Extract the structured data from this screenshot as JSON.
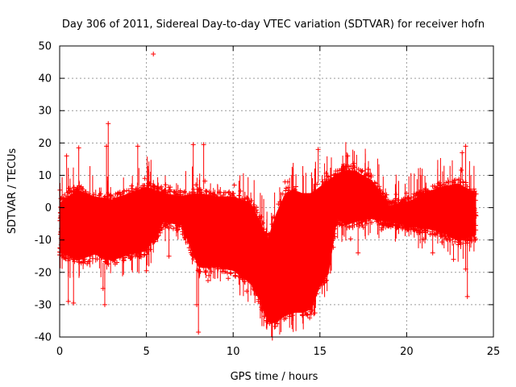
{
  "chart_data": {
    "type": "scatter",
    "title": "Day 306 of 2011, Sidereal Day-to-day VTEC variation (SDTVAR) for receiver hofn",
    "xlabel": "GPS time / hours",
    "ylabel": "SDTVAR / TECUs",
    "xlim": [
      0,
      25
    ],
    "ylim": [
      -40,
      50
    ],
    "xticks": [
      0,
      5,
      10,
      15,
      20,
      25
    ],
    "yticks": [
      -40,
      -30,
      -20,
      -10,
      0,
      10,
      20,
      30,
      40,
      50
    ],
    "grid": true,
    "marker": "+",
    "color": "#ff0000",
    "envelope": {
      "x": [
        0,
        1,
        2,
        3,
        4,
        5,
        6,
        7,
        8,
        9,
        10,
        11,
        11.5,
        12,
        12.5,
        13,
        13.5,
        14,
        14.5,
        15,
        15.5,
        16,
        16.5,
        17,
        18,
        19,
        20,
        21,
        22,
        23,
        24
      ],
      "upper": [
        3,
        7,
        5,
        4,
        6,
        8,
        6,
        5,
        6,
        5,
        5,
        3,
        -2,
        -8,
        0,
        6,
        7,
        6,
        6,
        8,
        10,
        12,
        13,
        13,
        10,
        2,
        3,
        6,
        8,
        9,
        6
      ],
      "lower": [
        -15,
        -18,
        -16,
        -18,
        -16,
        -15,
        -6,
        -7,
        -20,
        -20,
        -21,
        -25,
        -30,
        -37,
        -37,
        -35,
        -34,
        -34,
        -33,
        -26,
        -22,
        -5,
        -7,
        -6,
        -5,
        -6,
        -7,
        -8,
        -9,
        -12,
        -10
      ]
    },
    "outliers": [
      {
        "x": 5.4,
        "y": 47.5
      },
      {
        "x": 2.8,
        "y": 26
      },
      {
        "x": 2.7,
        "y": 19
      },
      {
        "x": 4.5,
        "y": 19
      },
      {
        "x": 7.7,
        "y": 19.5
      },
      {
        "x": 8.3,
        "y": 19.5
      },
      {
        "x": 1.1,
        "y": 18.5
      },
      {
        "x": 14.9,
        "y": 18
      },
      {
        "x": 23.4,
        "y": 19
      },
      {
        "x": 23.2,
        "y": 17
      },
      {
        "x": 0.4,
        "y": 16
      },
      {
        "x": 16.6,
        "y": 16
      },
      {
        "x": 8.0,
        "y": -38.5
      },
      {
        "x": 7.9,
        "y": -30
      },
      {
        "x": 2.6,
        "y": -30
      },
      {
        "x": 0.5,
        "y": -29
      },
      {
        "x": 0.8,
        "y": -29.5
      },
      {
        "x": 23.5,
        "y": -27.5
      },
      {
        "x": 23.4,
        "y": -19
      },
      {
        "x": 2.5,
        "y": -25
      },
      {
        "x": 5.0,
        "y": -19.5
      },
      {
        "x": 6.3,
        "y": -15
      },
      {
        "x": 8.6,
        "y": -21
      },
      {
        "x": 17.2,
        "y": -14
      },
      {
        "x": 21.5,
        "y": -14
      },
      {
        "x": 22.7,
        "y": -16
      }
    ]
  }
}
